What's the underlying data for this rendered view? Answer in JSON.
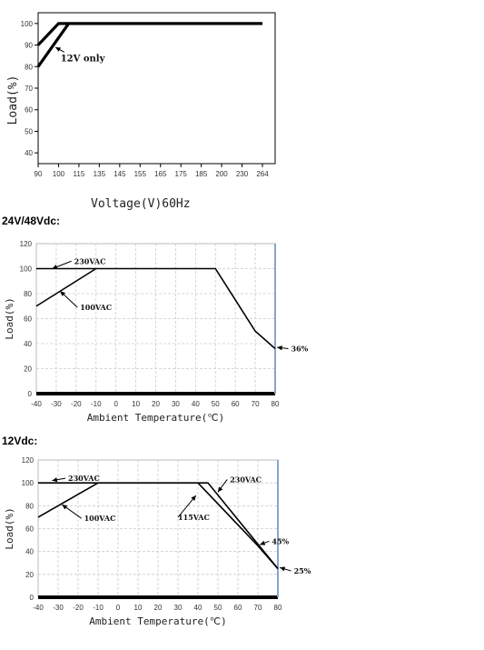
{
  "chart_data": [
    {
      "type": "line",
      "heading": "",
      "xlabel": "Voltage(V)60Hz",
      "ylabel": "Load(%)",
      "x_categories": [
        "90",
        "100",
        "115",
        "135",
        "145",
        "155",
        "165",
        "175",
        "185",
        "200",
        "230",
        "264"
      ],
      "y_ticks": [
        "40",
        "50",
        "60",
        "70",
        "80",
        "90",
        "100"
      ],
      "ylim": [
        35,
        105
      ],
      "grid": false,
      "series": [
        {
          "name": "",
          "points": [
            [
              0,
              90
            ],
            [
              1,
              100
            ],
            [
              11,
              100
            ]
          ]
        },
        {
          "name": "",
          "points": [
            [
              0,
              80
            ],
            [
              1.5,
              100
            ]
          ]
        }
      ],
      "annotations": [
        {
          "text": "12V only",
          "x": 0.85,
          "y": 89,
          "tx": 1.1,
          "ty": 82.5
        }
      ]
    },
    {
      "type": "line",
      "heading": "24V/48Vdc:",
      "xlabel": "Ambient Temperature(℃)",
      "ylabel": "Load(%)",
      "x_ticks": [
        "-40",
        "-30",
        "-20",
        "-10",
        "0",
        "10",
        "20",
        "30",
        "40",
        "50",
        "60",
        "70",
        "80"
      ],
      "y_ticks": [
        "0",
        "20",
        "40",
        "60",
        "80",
        "100",
        "120"
      ],
      "xlim": [
        -40,
        80
      ],
      "ylim": [
        0,
        120
      ],
      "grid": true,
      "series": [
        {
          "name": "230VAC",
          "points": [
            [
              -40,
              100
            ],
            [
              50,
              100
            ],
            [
              70,
              50
            ],
            [
              80,
              36
            ]
          ]
        },
        {
          "name": "100VAC",
          "points": [
            [
              -40,
              70
            ],
            [
              -10,
              100
            ]
          ]
        }
      ],
      "annotations": [
        {
          "text": "230VAC",
          "x": -32,
          "y": 100,
          "tx": -21,
          "ty": 106
        },
        {
          "text": "100VAC",
          "x": -28,
          "y": 82,
          "tx": -18,
          "ty": 69
        },
        {
          "text": "36%",
          "x": 81,
          "y": 37,
          "tx": 88,
          "ty": 36
        }
      ]
    },
    {
      "type": "line",
      "heading": "12Vdc:",
      "xlabel": "Ambient Temperature(℃)",
      "ylabel": "Load(%)",
      "x_ticks": [
        "-40",
        "-30",
        "-20",
        "-10",
        "0",
        "10",
        "20",
        "30",
        "40",
        "50",
        "60",
        "70",
        "80"
      ],
      "y_ticks": [
        "0",
        "20",
        "40",
        "60",
        "80",
        "100",
        "120"
      ],
      "xlim": [
        -40,
        80
      ],
      "ylim": [
        0,
        120
      ],
      "grid": true,
      "series": [
        {
          "name": "230VAC",
          "points": [
            [
              -40,
              100
            ],
            [
              45,
              100
            ],
            [
              80,
              25
            ]
          ]
        },
        {
          "name": "100VAC",
          "points": [
            [
              -40,
              70
            ],
            [
              -10,
              100
            ]
          ]
        },
        {
          "name": "115VAC",
          "points": [
            [
              40,
              100
            ],
            [
              70,
              45
            ],
            [
              80,
              25
            ]
          ]
        }
      ],
      "annotations": [
        {
          "text": "230VAC",
          "x": -33,
          "y": 102,
          "tx": -25,
          "ty": 104
        },
        {
          "text": "100VAC",
          "x": -28,
          "y": 81,
          "tx": -17,
          "ty": 69
        },
        {
          "text": "115VAC",
          "x": 39,
          "y": 89,
          "tx": 30,
          "ty": 70
        },
        {
          "text": "230VAC",
          "x": 50,
          "y": 92,
          "tx": 56,
          "ty": 103
        },
        {
          "text": "45%",
          "x": 71,
          "y": 46,
          "tx": 77,
          "ty": 49
        },
        {
          "text": "25%",
          "x": 81,
          "y": 26,
          "tx": 88,
          "ty": 23
        }
      ]
    }
  ]
}
